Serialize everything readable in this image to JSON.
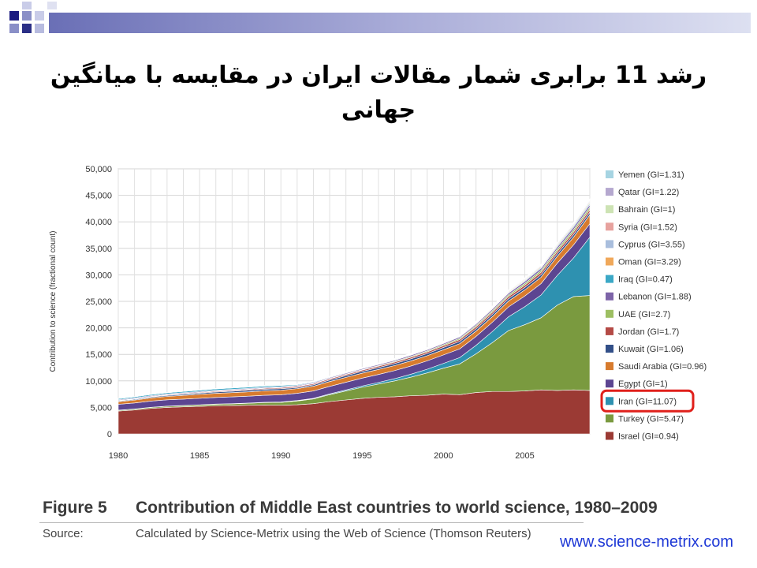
{
  "slide": {
    "title": "رشد 11 برابری شمار مقالات ایران در مقایسه با میانگین جهانی",
    "figure_label": "Figure 5",
    "figure_title": "Contribution of Middle East countries to world science, 1980–2009",
    "source_label": "Source:",
    "source_text": "Calculated by Science-Metrix using the Web of Science (Thomson Reuters)",
    "url": "www.science-metrix.com",
    "highlight_color": "#e0201b"
  },
  "chart_data": {
    "type": "area",
    "stacked": true,
    "title": "",
    "xlabel": "",
    "ylabel": "Contribution to science (fractional count)",
    "x": [
      1980,
      1981,
      1982,
      1983,
      1984,
      1985,
      1986,
      1987,
      1988,
      1989,
      1990,
      1991,
      1992,
      1993,
      1994,
      1995,
      1996,
      1997,
      1998,
      1999,
      2000,
      2001,
      2002,
      2003,
      2004,
      2005,
      2006,
      2007,
      2008,
      2009
    ],
    "xlim": [
      1980,
      2009
    ],
    "x_ticks": [
      1980,
      1985,
      1990,
      1995,
      2000,
      2005
    ],
    "ylim": [
      0,
      50000
    ],
    "y_ticks": [
      0,
      5000,
      10000,
      15000,
      20000,
      25000,
      30000,
      35000,
      40000,
      45000,
      50000
    ],
    "y_tick_labels": [
      "0",
      "5,000",
      "10,000",
      "15,000",
      "20,000",
      "25,000",
      "30,000",
      "35,000",
      "40,000",
      "45,000",
      "50,000"
    ],
    "grid": true,
    "legend_position": "right",
    "highlighted_series": "Iran (GI=11.07)",
    "series": [
      {
        "name": "Israel (GI=0.94)",
        "color": "#9b3a34",
        "values": [
          4300,
          4500,
          4800,
          5000,
          5100,
          5200,
          5300,
          5350,
          5400,
          5450,
          5400,
          5500,
          5700,
          6100,
          6400,
          6700,
          6900,
          7000,
          7200,
          7300,
          7500,
          7400,
          7800,
          8000,
          8000,
          8100,
          8300,
          8200,
          8300,
          8200
        ]
      },
      {
        "name": "Turkey (GI=5.47)",
        "color": "#7a9a3f",
        "values": [
          150,
          170,
          190,
          210,
          230,
          250,
          280,
          320,
          370,
          450,
          550,
          700,
          900,
          1300,
          1700,
          2100,
          2500,
          3000,
          3500,
          4200,
          4900,
          5800,
          7300,
          9200,
          11500,
          12500,
          13600,
          16100,
          17600,
          17900
        ]
      },
      {
        "name": "Iran (GI=11.07)",
        "color": "#2e91b0",
        "values": [
          30,
          30,
          30,
          30,
          30,
          35,
          40,
          40,
          50,
          60,
          70,
          90,
          110,
          140,
          190,
          240,
          310,
          420,
          560,
          700,
          900,
          1200,
          1600,
          2100,
          2600,
          3400,
          4300,
          5600,
          7300,
          11000
        ]
      },
      {
        "name": "Egypt (GI=1)",
        "color": "#5c4591",
        "values": [
          1100,
          1130,
          1160,
          1180,
          1200,
          1230,
          1260,
          1280,
          1300,
          1320,
          1350,
          1370,
          1390,
          1420,
          1450,
          1480,
          1500,
          1520,
          1550,
          1580,
          1600,
          1630,
          1680,
          1750,
          1850,
          2000,
          2150,
          2300,
          2450,
          2550
        ]
      },
      {
        "name": "Saudi Arabia (GI=0.96)",
        "color": "#d77b2e",
        "values": [
          500,
          550,
          600,
          650,
          700,
          750,
          780,
          800,
          820,
          840,
          860,
          880,
          900,
          910,
          920,
          930,
          940,
          950,
          960,
          970,
          980,
          990,
          1000,
          1050,
          1100,
          1150,
          1200,
          1300,
          1450,
          1650
        ]
      },
      {
        "name": "Kuwait (GI=1.06)",
        "color": "#324f88",
        "values": [
          120,
          140,
          160,
          180,
          200,
          220,
          240,
          260,
          280,
          300,
          300,
          200,
          260,
          300,
          320,
          340,
          360,
          380,
          400,
          410,
          420,
          430,
          440,
          450,
          460,
          470,
          480,
          490,
          500,
          520
        ]
      },
      {
        "name": "Jordan (GI=1.7)",
        "color": "#b44a46",
        "values": [
          80,
          90,
          100,
          110,
          120,
          130,
          140,
          150,
          160,
          170,
          180,
          190,
          200,
          210,
          220,
          230,
          250,
          270,
          290,
          310,
          330,
          350,
          370,
          390,
          410,
          430,
          450,
          470,
          490,
          510
        ]
      },
      {
        "name": "UAE (GI=2.7)",
        "color": "#9dbf62",
        "values": [
          20,
          22,
          25,
          28,
          30,
          35,
          40,
          45,
          50,
          55,
          60,
          65,
          70,
          80,
          90,
          100,
          120,
          140,
          160,
          180,
          200,
          220,
          250,
          280,
          310,
          340,
          370,
          400,
          430,
          460
        ]
      },
      {
        "name": "Lebanon (GI=1.88)",
        "color": "#7d64a8",
        "values": [
          150,
          150,
          150,
          150,
          150,
          150,
          150,
          150,
          150,
          150,
          150,
          150,
          160,
          170,
          180,
          190,
          200,
          210,
          220,
          230,
          240,
          260,
          280,
          300,
          330,
          360,
          390,
          420,
          450,
          480
        ]
      },
      {
        "name": "Iraq (GI=0.47)",
        "color": "#3ba8c6",
        "values": [
          200,
          210,
          220,
          230,
          240,
          250,
          260,
          260,
          250,
          240,
          220,
          150,
          120,
          110,
          100,
          100,
          100,
          100,
          100,
          100,
          100,
          110,
          120,
          130,
          140,
          160,
          180,
          200,
          230,
          260
        ]
      },
      {
        "name": "Oman (GI=3.29)",
        "color": "#f0a85a",
        "values": [
          5,
          5,
          6,
          7,
          8,
          10,
          12,
          15,
          18,
          22,
          26,
          30,
          35,
          40,
          45,
          50,
          60,
          70,
          80,
          90,
          100,
          110,
          120,
          130,
          140,
          150,
          170,
          190,
          210,
          230
        ]
      },
      {
        "name": "Cyprus (GI=3.55)",
        "color": "#a9bedd",
        "values": [
          5,
          5,
          6,
          7,
          8,
          10,
          12,
          14,
          16,
          18,
          20,
          25,
          30,
          35,
          40,
          45,
          50,
          60,
          70,
          80,
          90,
          100,
          110,
          120,
          135,
          150,
          165,
          180,
          200,
          220
        ]
      },
      {
        "name": "Syria (GI=1.52)",
        "color": "#e7a29e",
        "values": [
          30,
          32,
          34,
          36,
          38,
          40,
          42,
          44,
          46,
          48,
          50,
          52,
          54,
          56,
          58,
          60,
          65,
          70,
          75,
          80,
          85,
          90,
          95,
          100,
          110,
          120,
          130,
          140,
          150,
          160
        ]
      },
      {
        "name": "Bahrain (GI=1)",
        "color": "#cde3b4",
        "values": [
          10,
          11,
          12,
          13,
          14,
          15,
          16,
          17,
          18,
          19,
          20,
          21,
          22,
          23,
          24,
          25,
          26,
          27,
          28,
          29,
          30,
          32,
          34,
          36,
          38,
          40,
          42,
          44,
          46,
          48
        ]
      },
      {
        "name": "Qatar (GI=1.22)",
        "color": "#b5a8cf",
        "values": [
          5,
          5,
          6,
          6,
          7,
          7,
          8,
          8,
          9,
          9,
          10,
          10,
          11,
          12,
          13,
          14,
          15,
          16,
          18,
          20,
          22,
          24,
          27,
          30,
          34,
          40,
          48,
          58,
          70,
          85
        ]
      },
      {
        "name": "Yemen (GI=1.31)",
        "color": "#a6d4e2",
        "values": [
          2,
          2,
          2,
          3,
          3,
          3,
          4,
          4,
          5,
          5,
          6,
          7,
          8,
          9,
          10,
          11,
          12,
          13,
          15,
          17,
          19,
          21,
          23,
          25,
          28,
          31,
          34,
          37,
          40,
          44
        ]
      }
    ]
  }
}
